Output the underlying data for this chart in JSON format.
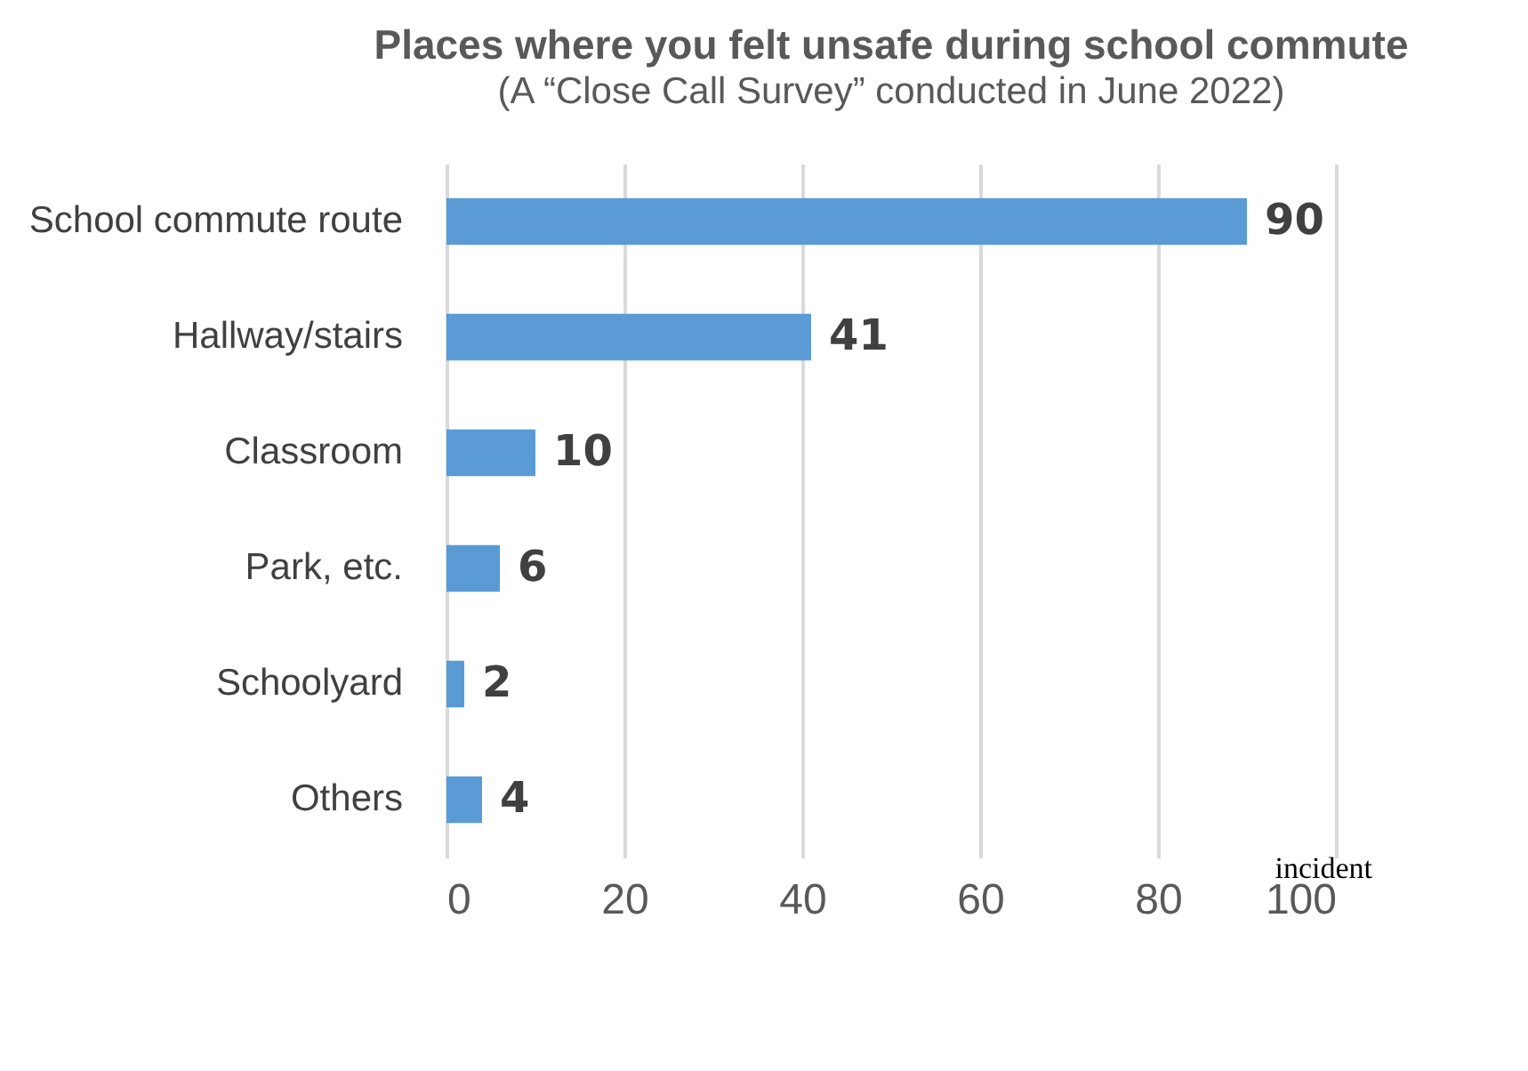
{
  "chart_data": {
    "type": "bar",
    "orientation": "horizontal",
    "title": "Places where you felt unsafe during school commute",
    "subtitle": "(A “Close Call Survey” conducted in June 2022)",
    "xlabel": "incident",
    "categories": [
      "School commute route",
      "Hallway/stairs",
      "Classroom",
      "Park, etc.",
      "Schoolyard",
      "Others"
    ],
    "values": [
      90,
      41,
      10,
      6,
      2,
      4
    ],
    "color": "#5b9bd5",
    "xlim": [
      0,
      100
    ],
    "xticks": [
      0,
      20,
      40,
      60,
      80,
      100
    ],
    "grid": "x",
    "data_labels": true
  }
}
